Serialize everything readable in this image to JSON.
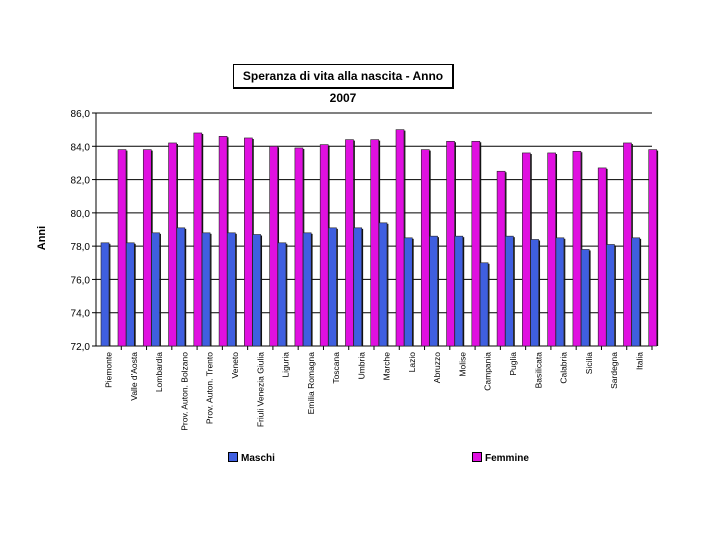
{
  "chart_data": {
    "type": "bar",
    "title": "Speranza di vita alla nascita - Anno 2007",
    "ylabel": "Anni",
    "ylim": [
      72,
      86
    ],
    "yticks": [
      "72,0",
      "74,0",
      "76,0",
      "78,0",
      "80,0",
      "82,0",
      "84,0",
      "86,0"
    ],
    "grid": true,
    "legend": "bottom",
    "categories": [
      "Piemonte",
      "Valle d'Aosta",
      "Lombardia",
      "Prov. Auton. Bolzano",
      "Prov. Auton. Trento",
      "Veneto",
      "Friuli Venezia Giulia",
      "Liguria",
      "Emilia Romagna",
      "Toscana",
      "Umbria",
      "Marche",
      "Lazio",
      "Abruzzo",
      "Molise",
      "Campania",
      "Puglia",
      "Basilicata",
      "Calabria",
      "Sicilia",
      "Sardegna",
      "Italia"
    ],
    "series": [
      {
        "name": "Maschi",
        "color": "#3f5fe0",
        "values": [
          78.2,
          78.2,
          78.8,
          79.1,
          78.8,
          78.8,
          78.7,
          78.2,
          78.8,
          79.1,
          79.1,
          79.4,
          78.5,
          78.6,
          78.6,
          77.0,
          78.6,
          78.4,
          78.5,
          77.8,
          78.1,
          78.5
        ]
      },
      {
        "name": "Femmine",
        "color": "#e010e0",
        "values": [
          83.8,
          83.8,
          84.2,
          84.8,
          84.6,
          84.5,
          84.0,
          83.9,
          84.1,
          84.4,
          84.4,
          85.0,
          83.8,
          84.3,
          84.3,
          82.5,
          83.6,
          83.6,
          83.7,
          82.7,
          84.2,
          83.8
        ]
      }
    ]
  }
}
